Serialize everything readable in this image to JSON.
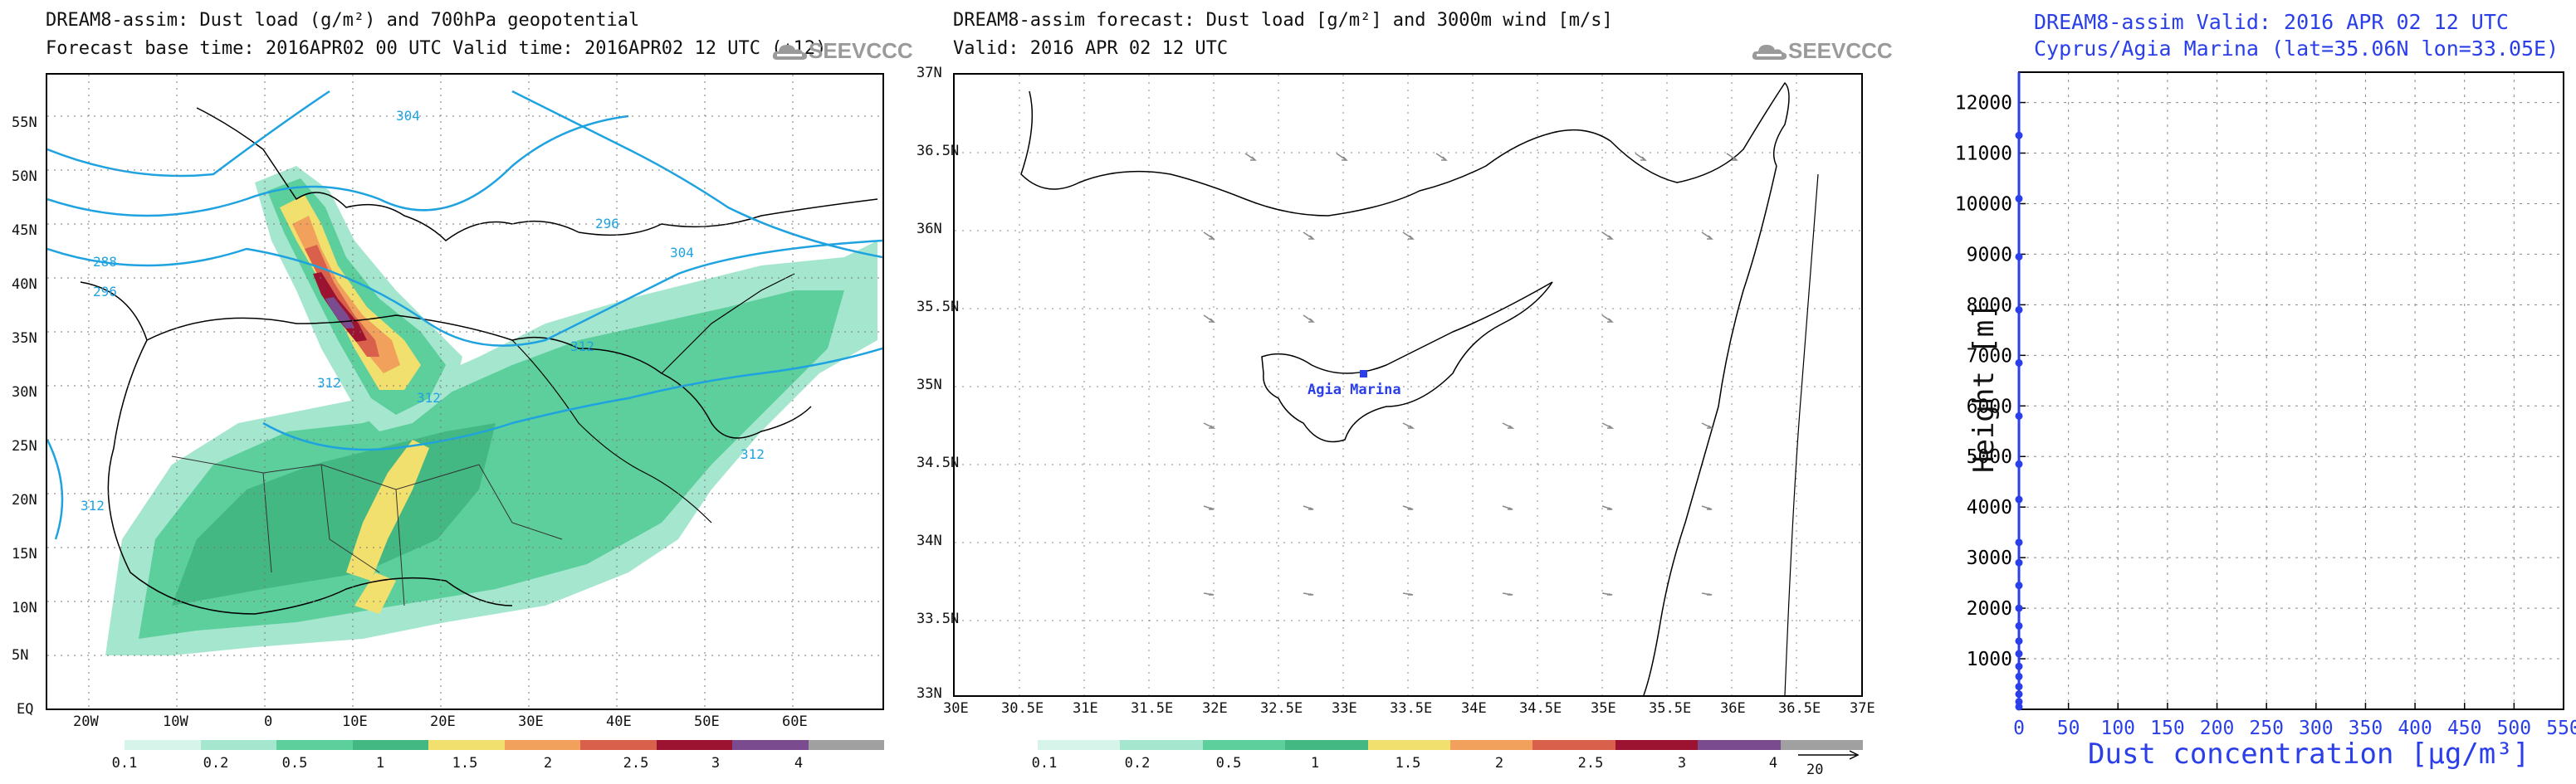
{
  "left_panel": {
    "title_line1": "DREAM8-assim: Dust load (g/m²) and 700hPa geopotential",
    "title_line2": "Forecast base time: 2016APR02 00 UTC  Valid time: 2016APR02 12 UTC  (+12)",
    "logo": "SEEVCCC",
    "lat_labels": [
      "55N",
      "50N",
      "45N",
      "40N",
      "35N",
      "30N",
      "25N",
      "20N",
      "15N",
      "10N",
      "5N",
      "EQ"
    ],
    "lon_labels": [
      "20W",
      "10W",
      "0",
      "10E",
      "20E",
      "30E",
      "40E",
      "50E",
      "60E"
    ],
    "contour_labels": [
      "304",
      "296",
      "288",
      "296",
      "304",
      "312",
      "312",
      "312",
      "312",
      "312"
    ],
    "colorbar": {
      "labels": [
        "0.1",
        "0.2",
        "0.5",
        "1",
        "1.5",
        "2",
        "2.5",
        "3",
        "4"
      ],
      "colors": [
        "#d7f4ea",
        "#a5e6cf",
        "#5ccf9c",
        "#43b883",
        "#f2e06e",
        "#f1a15c",
        "#d9604a",
        "#9b1330",
        "#7a4b8f",
        "#a0a0a0"
      ]
    }
  },
  "middle_panel": {
    "title_line1": "DREAM8-assim forecast: Dust load [g/m²] and 3000m wind [m/s]",
    "title_line2": "Valid: 2016 APR 02  12 UTC",
    "logo": "SEEVCCC",
    "lat_labels": [
      "37N",
      "36.5N",
      "36N",
      "35.5N",
      "35N",
      "34.5N",
      "34N",
      "33.5N",
      "33N"
    ],
    "lon_labels": [
      "30E",
      "30.5E",
      "31E",
      "31.5E",
      "32E",
      "32.5E",
      "33E",
      "33.5E",
      "34E",
      "34.5E",
      "35E",
      "35.5E",
      "36E",
      "36.5E",
      "37E"
    ],
    "station_label": "Agia Marina",
    "colorbar": {
      "labels": [
        "0.1",
        "0.2",
        "0.5",
        "1",
        "1.5",
        "2",
        "2.5",
        "3",
        "4"
      ],
      "colors": [
        "#d7f4ea",
        "#a5e6cf",
        "#5ccf9c",
        "#43b883",
        "#f2e06e",
        "#f1a15c",
        "#d9604a",
        "#9b1330",
        "#7a4b8f",
        "#a0a0a0"
      ]
    },
    "wind_ref": "20"
  },
  "right_panel": {
    "title_line1": "DREAM8-assim  Valid: 2016 APR 02  12 UTC",
    "title_line2": "Cyprus/Agia Marina (lat=35.06N lon=33.05E)",
    "chart_data": {
      "type": "line",
      "title": "DREAM8-assim  Valid: 2016 APR 02  12 UTC",
      "subtitle": "Cyprus/Agia Marina (lat=35.06N lon=33.05E)",
      "xlabel": "Dust concentration [µg/m³]",
      "ylabel": "Height [m]",
      "xlim": [
        0,
        550
      ],
      "ylim": [
        0,
        12600
      ],
      "x_ticks": [
        "0",
        "50",
        "100",
        "150",
        "200",
        "250",
        "300",
        "350",
        "400",
        "450",
        "500",
        "550"
      ],
      "y_ticks": [
        "1000",
        "2000",
        "3000",
        "4000",
        "5000",
        "6000",
        "7000",
        "8000",
        "9000",
        "10000",
        "11000",
        "12000"
      ],
      "grid": true,
      "series": [
        {
          "x": [
            0,
            0,
            0,
            0,
            0,
            0,
            0,
            0,
            0,
            0,
            0,
            0,
            0,
            0,
            0,
            0,
            0,
            0,
            0,
            0,
            0
          ],
          "y": [
            50,
            150,
            300,
            450,
            650,
            850,
            1100,
            1350,
            1650,
            2000,
            2450,
            2900,
            3300,
            4150,
            4850,
            5800,
            6850,
            7900,
            8950,
            10100,
            11350
          ]
        }
      ]
    }
  }
}
